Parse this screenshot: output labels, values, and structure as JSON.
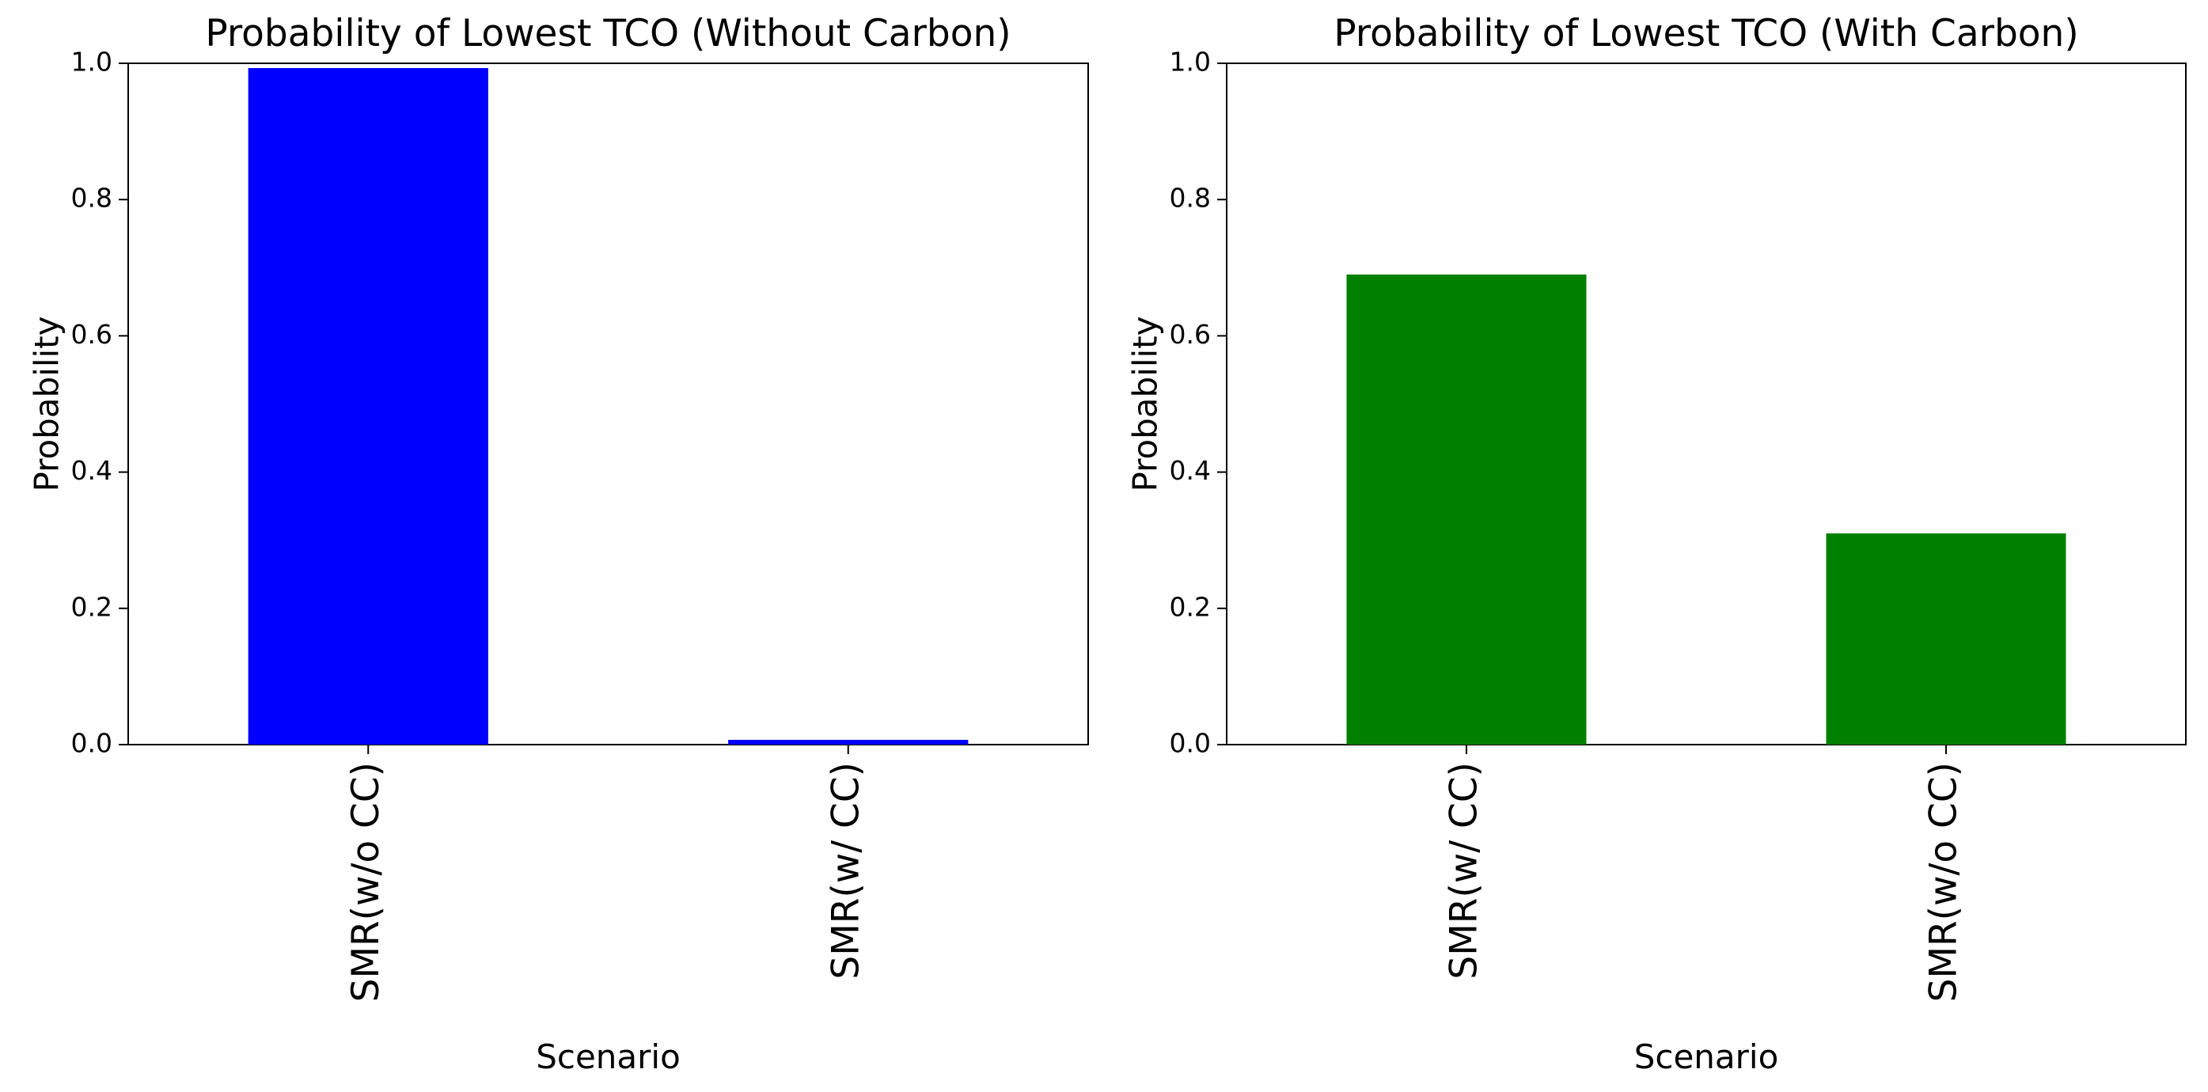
{
  "chart_data": [
    {
      "type": "bar",
      "title": "Probability of Lowest TCO (Without Carbon)",
      "xlabel": "Scenario",
      "ylabel": "Probability",
      "categories": [
        "SMR(w/o CC)",
        "SMR(w/ CC)"
      ],
      "values": [
        0.993,
        0.007
      ],
      "ylim": [
        0,
        1.0
      ],
      "yticks": [
        "0.0",
        "0.2",
        "0.4",
        "0.6",
        "0.8",
        "1.0"
      ],
      "color": "#0000ff",
      "grid": false
    },
    {
      "type": "bar",
      "title": "Probability of Lowest TCO (With Carbon)",
      "xlabel": "Scenario",
      "ylabel": "Probability",
      "categories": [
        "SMR(w/ CC)",
        "SMR(w/o CC)"
      ],
      "values": [
        0.69,
        0.31
      ],
      "ylim": [
        0,
        1.0
      ],
      "yticks": [
        "0.0",
        "0.2",
        "0.4",
        "0.6",
        "0.8",
        "1.0"
      ],
      "color": "#008000",
      "grid": false
    }
  ]
}
